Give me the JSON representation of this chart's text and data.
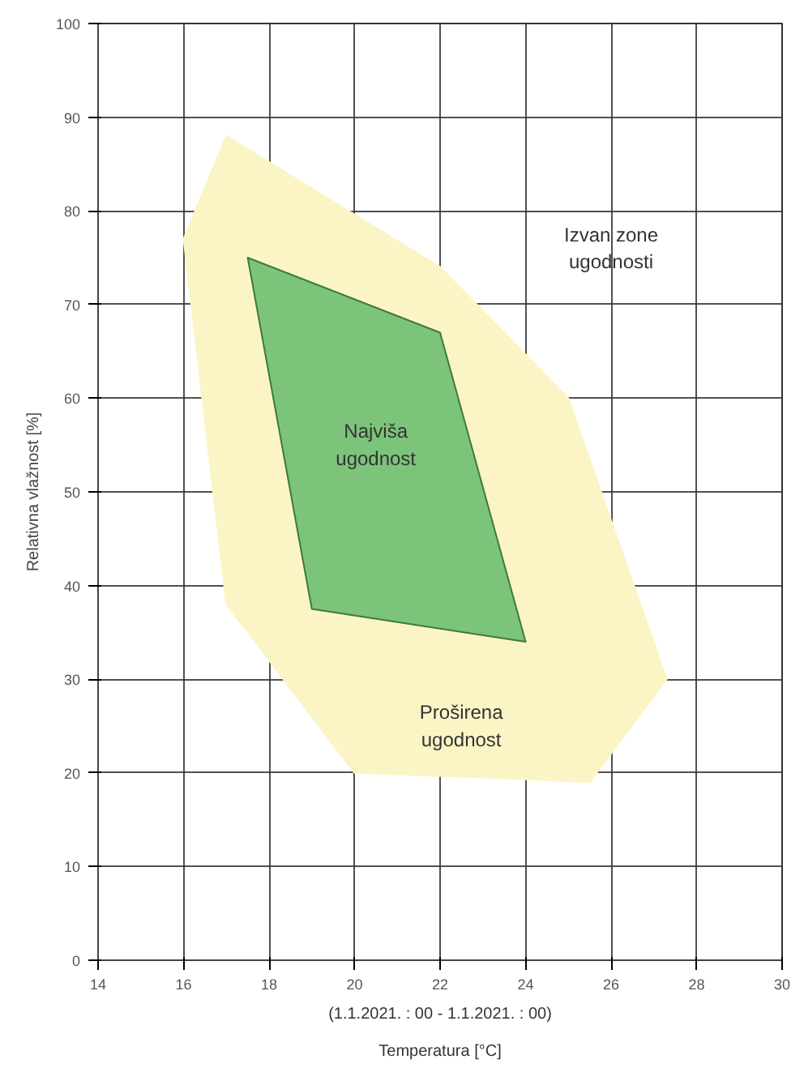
{
  "chart_data": {
    "type": "area",
    "xlabel": "Temperatura [°C]",
    "ylabel": "Relativna vlažnost [%]",
    "xlim": [
      14,
      30
    ],
    "xticks": [
      14,
      16,
      18,
      20,
      22,
      24,
      26,
      28,
      30
    ],
    "ylim": [
      0,
      100
    ],
    "yticks": [
      0,
      10,
      20,
      30,
      40,
      50,
      60,
      70,
      80,
      90,
      100
    ],
    "grid": true,
    "series": [
      {
        "color": "#fbf5c6",
        "x": [
          17,
          22,
          25,
          27.3,
          25.5,
          23,
          20,
          17,
          16
        ],
        "values": [
          88,
          74,
          60,
          30,
          19,
          19.5,
          20,
          38,
          77
        ]
      },
      {
        "color": "#7dc47b",
        "x": [
          17.5,
          22,
          24,
          19
        ],
        "values": [
          75,
          67,
          34,
          37.5
        ]
      }
    ],
    "annotations": [
      "Izvan zone ugodnosti",
      "Najviša ugodnost",
      "Proširena ugodnost",
      "(1.1.2021. : 00 - 1.1.2021. : 00)"
    ]
  }
}
